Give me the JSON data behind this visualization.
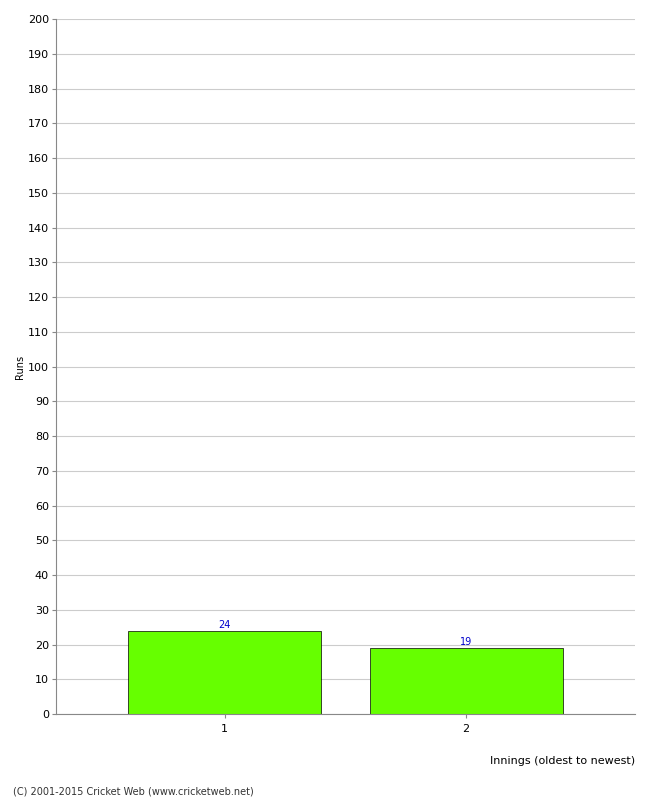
{
  "categories": [
    "1",
    "2"
  ],
  "values": [
    24,
    19
  ],
  "bar_color": "#66ff00",
  "bar_edge_color": "#000000",
  "ylabel": "Runs",
  "xlabel": "Innings (oldest to newest)",
  "ylim": [
    0,
    200
  ],
  "yticks": [
    0,
    10,
    20,
    30,
    40,
    50,
    60,
    70,
    80,
    90,
    100,
    110,
    120,
    130,
    140,
    150,
    160,
    170,
    180,
    190,
    200
  ],
  "annotation_color": "#0000cc",
  "annotation_fontsize": 7,
  "footer": "(C) 2001-2015 Cricket Web (www.cricketweb.net)",
  "background_color": "#ffffff",
  "grid_color": "#cccccc",
  "tick_fontsize": 8,
  "ylabel_fontsize": 7,
  "xlabel_fontsize": 8
}
